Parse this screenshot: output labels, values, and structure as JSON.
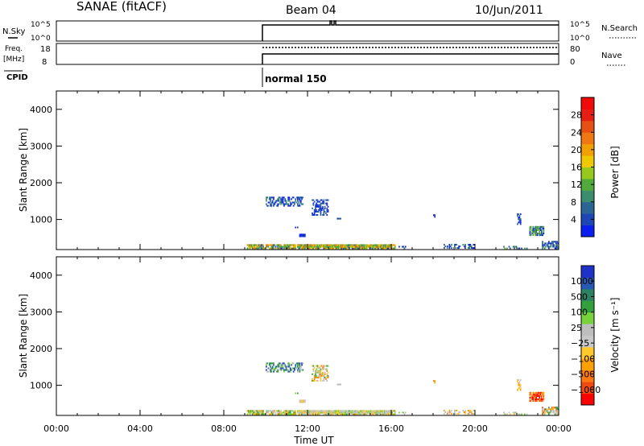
{
  "header": {
    "station": "SANAE (fitACF)",
    "beam": "Beam 04",
    "date": "10/Jun/2011"
  },
  "status_panels": {
    "nsky": {
      "label": "N.Sky",
      "ticks": [
        "10^5",
        "10^0"
      ]
    },
    "nsearch": {
      "label": "N.Search",
      "ticks": [
        "10^5",
        "10^0"
      ]
    },
    "freq": {
      "label_line1": "Freq.",
      "label_line2": "[MHz]",
      "ticks": [
        "18",
        "8"
      ]
    },
    "nave": {
      "label": "Nave",
      "ticks": [
        "80",
        "0"
      ]
    },
    "cpid": {
      "label": "CPID",
      "mode": "normal 150"
    }
  },
  "colors": {
    "power": [
      "#0a1ef0",
      "#1e46b4",
      "#2d6496",
      "#3c8c6e",
      "#50aa3c",
      "#96c81e",
      "#f0c800",
      "#f0a000",
      "#f07814",
      "#e65014",
      "#e61e14",
      "#f00a0a"
    ],
    "velocity": [
      "#ff0000",
      "#f04a14",
      "#ff7814",
      "#ffa000",
      "#ffc82d",
      "#c8c8c8",
      "#bebebe",
      "#78d23c",
      "#32a03c",
      "#2d8264",
      "#285ab4",
      "#1e32c8"
    ]
  },
  "chart_data": [
    {
      "type": "heatmap",
      "name": "power",
      "xlabel": "",
      "ylabel": "Slant Range [km]",
      "ylim": [
        180,
        4500
      ],
      "xlim_hours": [
        0,
        24
      ],
      "yticks": [
        "4000",
        "3000",
        "2000",
        "1000"
      ],
      "ytick_values": [
        4000,
        3000,
        2000,
        1000
      ],
      "colorbar": {
        "label": "Power [dB]",
        "ticks": [
          "28",
          "24",
          "20",
          "16",
          "12",
          "8",
          "4"
        ],
        "range": [
          0,
          30
        ]
      }
    },
    {
      "type": "heatmap",
      "name": "velocity",
      "xlabel": "Time UT",
      "ylabel": "Slant Range [km]",
      "ylim": [
        180,
        4500
      ],
      "xlim_hours": [
        0,
        24
      ],
      "yticks": [
        "4000",
        "3000",
        "2000",
        "1000"
      ],
      "ytick_values": [
        4000,
        3000,
        2000,
        1000
      ],
      "xticks": [
        "00:00",
        "04:00",
        "08:00",
        "12:00",
        "16:00",
        "20:00",
        "00:00"
      ],
      "xtick_hours": [
        0,
        4,
        8,
        12,
        16,
        20,
        24
      ],
      "colorbar": {
        "label": "Velocity [m s⁻¹]",
        "ticks": [
          "1000",
          "500",
          "100",
          "25",
          "−25",
          "−100",
          "−500",
          "−1000"
        ]
      }
    }
  ]
}
